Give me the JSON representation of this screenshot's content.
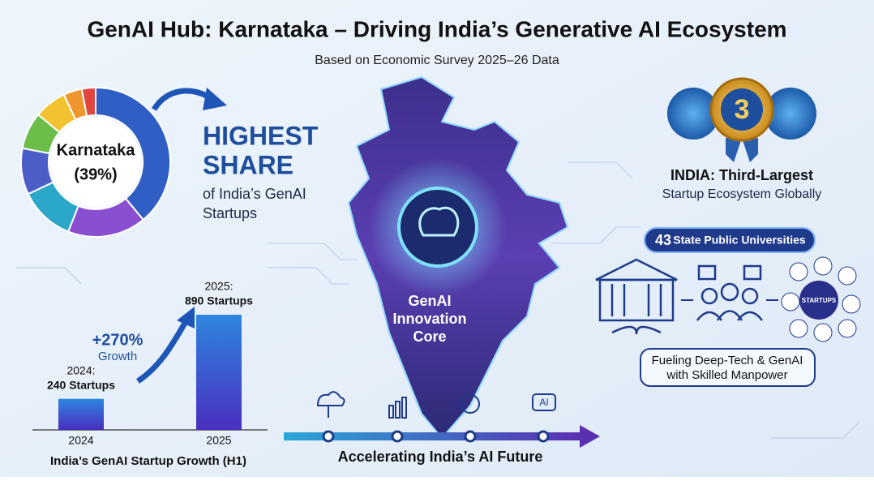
{
  "header": {
    "title": "GenAI Hub: Karnataka – Driving India’s Generative AI Ecosystem",
    "subtitle": "Based on Economic Survey 2025–26 Data"
  },
  "chart_data": [
    {
      "type": "pie",
      "donut": true,
      "center_label": "Karnataka",
      "values": [
        39,
        17,
        12,
        10,
        8,
        7,
        4,
        3
      ],
      "value_labels": [
        "(39%)",
        null,
        null,
        null,
        null,
        null,
        null,
        null
      ],
      "colors": [
        "#2f5fc4",
        "#8a4fd0",
        "#2aa7c9",
        "#4c5fc8",
        "#6cbd4a",
        "#f2c230",
        "#f0962e",
        "#e0463e"
      ]
    },
    {
      "type": "bar",
      "title": "India’s GenAI Startup Growth (H1)",
      "categories": [
        "2024",
        "2025"
      ],
      "values": [
        240,
        890
      ],
      "value_labels": [
        "240 Startups",
        "890 Startups"
      ],
      "value_label_titles": [
        "2024:",
        "2025:"
      ],
      "color": "#3b3fc8",
      "annotation": {
        "text": "+270%",
        "subtext": "Growth"
      }
    }
  ],
  "highlight": {
    "title_lines": [
      "HIGHEST",
      "SHARE"
    ],
    "body_lines": [
      "of India’s GenAI",
      "Startups"
    ]
  },
  "map": {
    "label_lines": [
      "GenAI",
      "Innovation",
      "Core"
    ]
  },
  "ranking": {
    "rank": 3,
    "title": "INDIA: Third-Largest",
    "subtitle": "Startup Ecosystem Globally"
  },
  "universities": {
    "count": 43,
    "label": "State Public Universities",
    "hub_label": "STARTUPS",
    "caption_lines": [
      "Fueling Deep-Tech & GenAI",
      "with Skilled Manpower"
    ]
  },
  "timeline": {
    "label": "Accelerating India’s AI Future",
    "icon_text": "AI"
  }
}
